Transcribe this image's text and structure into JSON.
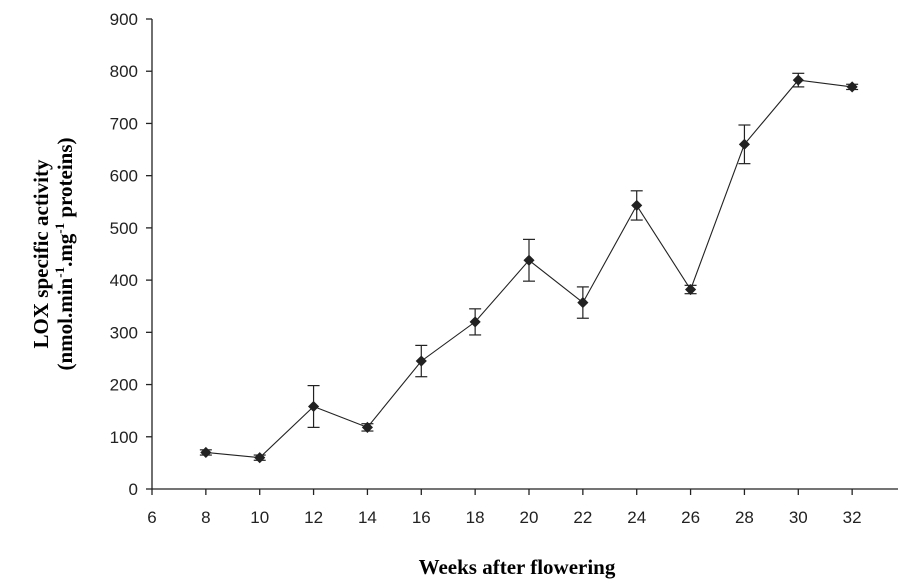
{
  "chart_data": {
    "type": "line",
    "title": "",
    "xlabel": "Weeks after flowering",
    "ylabel": {
      "line1": "LOX specific activity",
      "line2_a": "(nmol.min",
      "line2_sup1": "-1",
      "line2_b": ".mg",
      "line2_sup2": "-1",
      "line2_c": " proteins)"
    },
    "xlim": [
      6,
      34
    ],
    "ylim": [
      0,
      900
    ],
    "xticks": [
      6,
      8,
      10,
      12,
      14,
      16,
      18,
      20,
      22,
      24,
      26,
      28,
      30,
      32
    ],
    "yticks": [
      0,
      100,
      200,
      300,
      400,
      500,
      600,
      700,
      800,
      900
    ],
    "grid": false,
    "legend": "none",
    "marker": "diamond",
    "color": "#222222",
    "series": [
      {
        "x": [
          8,
          10,
          12,
          14,
          16,
          18,
          20,
          22,
          24,
          26,
          28,
          30,
          32
        ],
        "y": [
          70,
          60,
          158,
          118,
          245,
          320,
          438,
          357,
          543,
          382,
          660,
          783,
          770
        ],
        "error": [
          5,
          5,
          40,
          7,
          30,
          25,
          40,
          30,
          28,
          8,
          37,
          13,
          5
        ]
      }
    ]
  }
}
